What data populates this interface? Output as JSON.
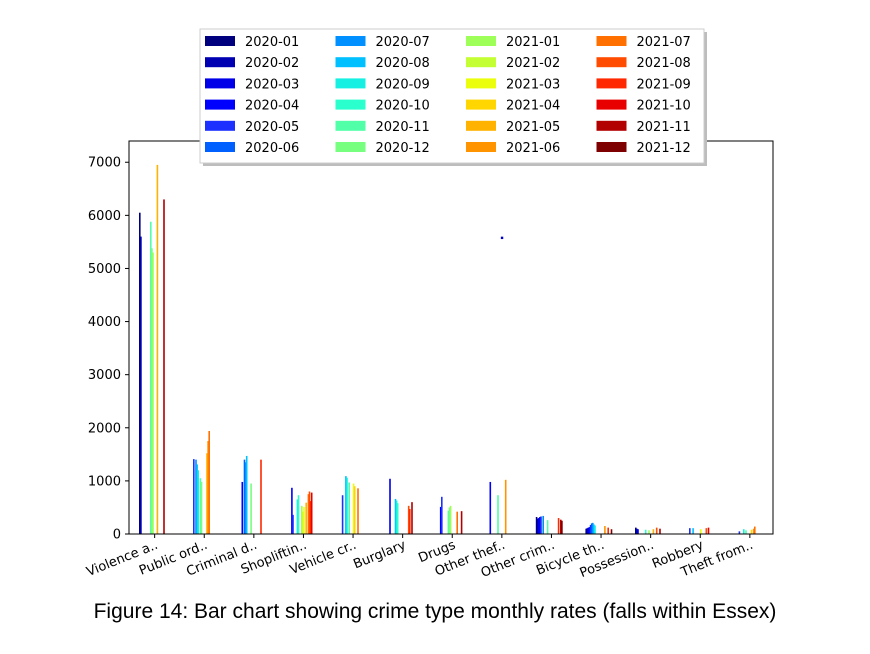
{
  "caption": "Figure 14: Bar chart showing crime type monthly rates (falls within Essex)",
  "chart_data": {
    "type": "bar",
    "title": "",
    "xlabel": "",
    "ylabel": "",
    "ylim": [
      0,
      7400
    ],
    "yticks": [
      0,
      1000,
      2000,
      3000,
      4000,
      5000,
      6000,
      7000
    ],
    "grid": false,
    "legend_position": "top-center",
    "categories": [
      "Violence a..",
      "Public ord..",
      "Criminal d..",
      "Shopliftin..",
      "Vehicle cr..",
      "Burglary",
      "Drugs",
      "Other thef..",
      "Other crim..",
      "Bicycle th..",
      "Possession..",
      "Robbery",
      "Theft from.."
    ],
    "series": [
      {
        "name": "2020-01",
        "color": "#00007f",
        "values": [
          6050,
          0,
          0,
          0,
          0,
          0,
          0,
          0,
          320,
          100,
          120,
          0,
          0
        ]
      },
      {
        "name": "2020-02",
        "color": "#0000b2",
        "values": [
          5600,
          0,
          0,
          0,
          0,
          0,
          0,
          0,
          290,
          110,
          100,
          0,
          0
        ]
      },
      {
        "name": "2020-03",
        "color": "#0000e8",
        "values": [
          0,
          0,
          0,
          0,
          0,
          1040,
          0,
          0,
          300,
          120,
          90,
          0,
          0
        ]
      },
      {
        "name": "2020-04",
        "color": "#0000ff",
        "values": [
          0,
          0,
          980,
          870,
          0,
          0,
          510,
          980,
          320,
          130,
          0,
          0,
          0
        ]
      },
      {
        "name": "2020-05",
        "color": "#1c30ff",
        "values": [
          0,
          1410,
          0,
          360,
          730,
          0,
          700,
          0,
          330,
          170,
          0,
          110,
          50
        ]
      },
      {
        "name": "2020-06",
        "color": "#0060ff",
        "values": [
          0,
          0,
          1400,
          0,
          0,
          0,
          0,
          0,
          0,
          200,
          0,
          0,
          0
        ]
      },
      {
        "name": "2020-07",
        "color": "#0090ff",
        "values": [
          0,
          1400,
          1350,
          0,
          0,
          0,
          0,
          0,
          340,
          210,
          0,
          0,
          0
        ]
      },
      {
        "name": "2020-08",
        "color": "#00c0ff",
        "values": [
          0,
          1310,
          1470,
          0,
          1090,
          660,
          0,
          0,
          0,
          180,
          0,
          110,
          0
        ]
      },
      {
        "name": "2020-09",
        "color": "#15f0e2",
        "values": [
          0,
          1200,
          0,
          650,
          1060,
          630,
          0,
          0,
          0,
          160,
          0,
          0,
          90
        ]
      },
      {
        "name": "2020-10",
        "color": "#2affce",
        "values": [
          0,
          0,
          0,
          730,
          0,
          580,
          0,
          0,
          0,
          0,
          80,
          0,
          0
        ]
      },
      {
        "name": "2020-11",
        "color": "#50ffa7",
        "values": [
          5880,
          1050,
          0,
          0,
          970,
          0,
          440,
          730,
          260,
          0,
          0,
          0,
          70
        ]
      },
      {
        "name": "2020-12",
        "color": "#77ff80",
        "values": [
          5380,
          980,
          950,
          0,
          0,
          0,
          500,
          0,
          0,
          0,
          0,
          0,
          0
        ]
      },
      {
        "name": "2021-01",
        "color": "#9eff59",
        "values": [
          5300,
          0,
          0,
          530,
          0,
          0,
          530,
          0,
          0,
          0,
          70,
          0,
          0
        ]
      },
      {
        "name": "2021-02",
        "color": "#c4ff33",
        "values": [
          0,
          0,
          0,
          420,
          0,
          0,
          0,
          0,
          0,
          0,
          0,
          0,
          0
        ]
      },
      {
        "name": "2021-03",
        "color": "#ebff0c",
        "values": [
          0,
          0,
          0,
          510,
          950,
          0,
          0,
          0,
          0,
          0,
          0,
          90,
          0
        ]
      },
      {
        "name": "2021-04",
        "color": "#ffd600",
        "values": [
          0,
          0,
          0,
          0,
          900,
          0,
          0,
          0,
          0,
          0,
          0,
          0,
          80
        ]
      },
      {
        "name": "2021-05",
        "color": "#ffb200",
        "values": [
          6950,
          1520,
          0,
          590,
          0,
          0,
          0,
          0,
          0,
          0,
          90,
          0,
          0
        ]
      },
      {
        "name": "2021-06",
        "color": "#ff9400",
        "values": [
          0,
          1750,
          0,
          0,
          0,
          0,
          0,
          1020,
          0,
          150,
          0,
          0,
          100
        ]
      },
      {
        "name": "2021-07",
        "color": "#ff7000",
        "values": [
          0,
          1940,
          0,
          750,
          860,
          0,
          420,
          0,
          0,
          0,
          0,
          0,
          140
        ]
      },
      {
        "name": "2021-08",
        "color": "#ff4c00",
        "values": [
          0,
          0,
          0,
          800,
          0,
          530,
          0,
          0,
          0,
          0,
          120,
          110,
          0
        ]
      },
      {
        "name": "2021-09",
        "color": "#ff2800",
        "values": [
          0,
          0,
          1400,
          620,
          0,
          470,
          0,
          0,
          300,
          120,
          0,
          0,
          0
        ]
      },
      {
        "name": "2021-10",
        "color": "#e80000",
        "values": [
          0,
          0,
          0,
          780,
          0,
          0,
          0,
          0,
          0,
          0,
          0,
          120,
          0
        ]
      },
      {
        "name": "2021-11",
        "color": "#b20000",
        "values": [
          6300,
          0,
          0,
          0,
          0,
          600,
          430,
          0,
          270,
          0,
          100,
          0,
          0
        ]
      },
      {
        "name": "2021-12",
        "color": "#7f0000",
        "values": [
          0,
          0,
          0,
          0,
          0,
          0,
          0,
          0,
          250,
          90,
          0,
          0,
          0
        ]
      }
    ],
    "annotations": [
      {
        "x": "Other thef..",
        "y": 5580,
        "color": "#0000cc",
        "text": ""
      }
    ]
  }
}
